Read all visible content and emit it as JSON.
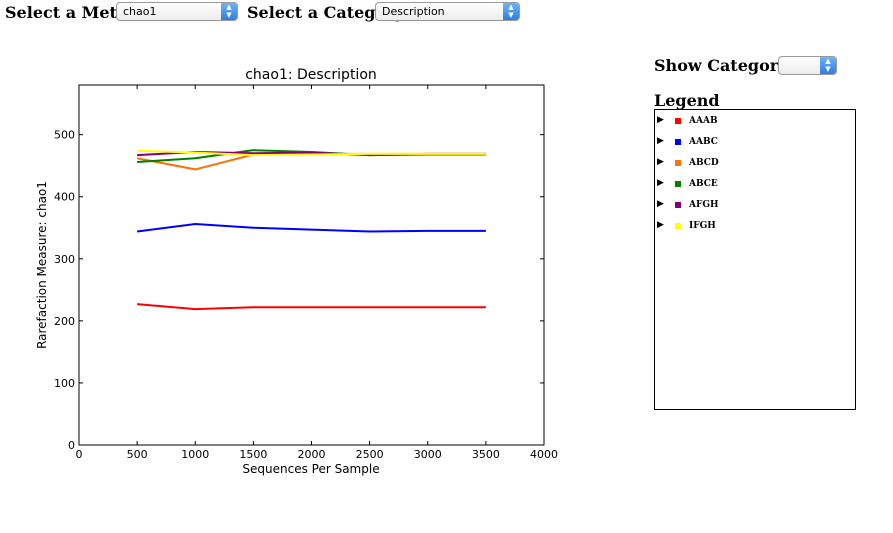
{
  "controls": {
    "metric_label": "Select a Metric:",
    "metric_value": "chao1",
    "category_label": "Select a Category:",
    "category_value": "Description",
    "show_categories_label": "Show Categories:",
    "show_categories_value": "",
    "legend_heading": "Legend"
  },
  "legend": {
    "items": [
      {
        "label": "AAAB",
        "color": "#ff0000"
      },
      {
        "label": "AABC",
        "color": "#0000ff"
      },
      {
        "label": "ABCD",
        "color": "#f97306"
      },
      {
        "label": "ABCE",
        "color": "#008000"
      },
      {
        "label": "AFGH",
        "color": "#800080"
      },
      {
        "label": "IFGH",
        "color": "#ffff00"
      }
    ]
  },
  "chart_data": {
    "type": "line",
    "title": "chao1: Description",
    "xlabel": "Sequences Per Sample",
    "ylabel": "Rarefaction Measure: chao1",
    "xlim": [
      0,
      4000
    ],
    "ylim": [
      0,
      580
    ],
    "xticks": [
      0,
      500,
      1000,
      1500,
      2000,
      2500,
      3000,
      3500,
      4000
    ],
    "yticks": [
      0,
      100,
      200,
      300,
      400,
      500
    ],
    "grid": false,
    "x": [
      500,
      1000,
      1500,
      2000,
      2500,
      3000,
      3500
    ],
    "series": [
      {
        "name": "AAAB",
        "color": "#ff0000",
        "values": [
          227,
          219,
          222,
          222,
          222,
          222,
          222
        ]
      },
      {
        "name": "AABC",
        "color": "#0000ff",
        "values": [
          344,
          356,
          350,
          347,
          344,
          345,
          345
        ]
      },
      {
        "name": "ABCD",
        "color": "#f97306",
        "values": [
          462,
          444,
          468,
          469,
          469,
          469,
          469
        ]
      },
      {
        "name": "ABCE",
        "color": "#008000",
        "values": [
          456,
          462,
          475,
          472,
          467,
          468,
          468
        ]
      },
      {
        "name": "AFGH",
        "color": "#800080",
        "values": [
          467,
          472,
          470,
          471,
          467,
          469,
          469
        ]
      },
      {
        "name": "IFGH",
        "color": "#ffff00",
        "values": [
          474,
          471,
          467,
          468,
          469,
          469,
          469
        ]
      }
    ]
  }
}
